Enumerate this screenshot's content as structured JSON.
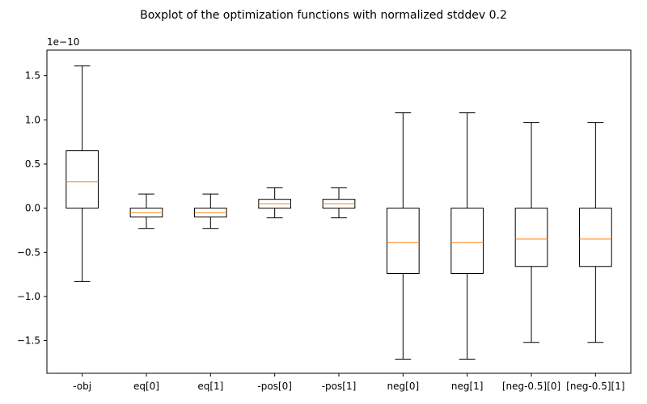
{
  "chart_data": {
    "type": "boxplot",
    "title": "Boxplot of the optimization functions with normalized stddev 0.2",
    "xlabel": "",
    "ylabel": "",
    "y_scale_label": "1e−10",
    "ylim": [
      -1.87,
      1.79
    ],
    "yticks": [
      1.5,
      1.0,
      0.5,
      0.0,
      -0.5,
      -1.0,
      -1.5
    ],
    "ytick_labels": [
      "1.5",
      "1.0",
      "0.5",
      "0.0",
      "−0.5",
      "−1.0",
      "−1.5"
    ],
    "grid": false,
    "categories": [
      "-obj",
      "eq[0]",
      "eq[1]",
      "-pos[0]",
      "-pos[1]",
      "neg[0]",
      "neg[1]",
      "[neg-0.5][0]",
      "[neg-0.5][1]"
    ],
    "boxes": [
      {
        "whisker_low": -0.83,
        "q1": 0.0,
        "median": 0.3,
        "q3": 0.65,
        "whisker_high": 1.61
      },
      {
        "whisker_low": -0.23,
        "q1": -0.1,
        "median": -0.05,
        "q3": 0.0,
        "whisker_high": 0.16
      },
      {
        "whisker_low": -0.23,
        "q1": -0.1,
        "median": -0.05,
        "q3": 0.0,
        "whisker_high": 0.16
      },
      {
        "whisker_low": -0.11,
        "q1": 0.0,
        "median": 0.05,
        "q3": 0.1,
        "whisker_high": 0.23
      },
      {
        "whisker_low": -0.11,
        "q1": 0.0,
        "median": 0.05,
        "q3": 0.1,
        "whisker_high": 0.23
      },
      {
        "whisker_low": -1.71,
        "q1": -0.74,
        "median": -0.39,
        "q3": 0.0,
        "whisker_high": 1.08
      },
      {
        "whisker_low": -1.71,
        "q1": -0.74,
        "median": -0.39,
        "q3": 0.0,
        "whisker_high": 1.08
      },
      {
        "whisker_low": -1.52,
        "q1": -0.66,
        "median": -0.35,
        "q3": 0.0,
        "whisker_high": 0.97
      },
      {
        "whisker_low": -1.52,
        "q1": -0.66,
        "median": -0.35,
        "q3": 0.0,
        "whisker_high": 0.97
      }
    ],
    "colors": {
      "box": "#000000",
      "median": "#ff7f0e",
      "axes": "#000000",
      "background": "#ffffff"
    }
  }
}
